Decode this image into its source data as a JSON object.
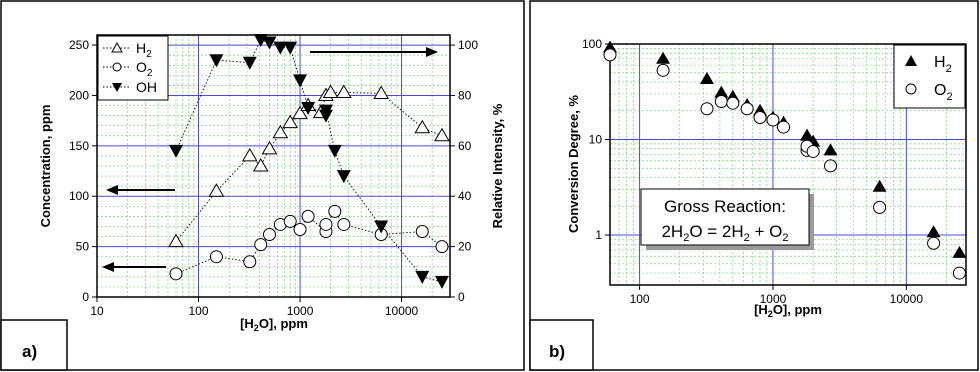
{
  "panels": {
    "a": {
      "label": "a)",
      "xlabel_prefix": "[H",
      "xlabel_sub": "2",
      "xlabel_suffix": "O], ppm",
      "ylabel_left": "Concentration, ppm",
      "ylabel_right": "Relative Intensity, %",
      "x_ticks": [
        "10",
        "100",
        "1000",
        "10000"
      ],
      "y_ticks_left": [
        "0",
        "50",
        "100",
        "150",
        "200",
        "250"
      ],
      "y_ticks_right": [
        "0",
        "20",
        "40",
        "60",
        "80",
        "100"
      ],
      "legend": [
        {
          "main": "H",
          "sub": "2"
        },
        {
          "main": "O",
          "sub": "2"
        },
        {
          "main": "OH",
          "sub": ""
        }
      ]
    },
    "b": {
      "label": "b)",
      "xlabel_prefix": "[H",
      "xlabel_sub": "2",
      "xlabel_suffix": "O], ppm",
      "ylabel": "Conversion Degree, %",
      "x_ticks": [
        "100",
        "1000",
        "10000"
      ],
      "y_ticks": [
        "1",
        "10",
        "100"
      ],
      "legend": [
        {
          "main": "H",
          "sub": "2"
        },
        {
          "main": "O",
          "sub": "2"
        }
      ],
      "annotation_line1": "Gross Reaction:",
      "annotation_line2_parts": [
        "2H",
        "2",
        "O = 2H",
        "2",
        " + O",
        "2"
      ]
    }
  },
  "colors": {
    "grid_major": "#4a4ad6",
    "grid_minor": "#7fd07f",
    "marker": "#000000",
    "frame": "#000000"
  },
  "chart_data": [
    {
      "type": "scatter",
      "panel": "a",
      "x_scale": "log",
      "xlim": [
        10,
        30000
      ],
      "ylim": [
        0,
        260
      ],
      "y2lim": [
        0,
        104
      ],
      "grid": true,
      "legend_position": "top-left",
      "series": [
        {
          "name": "H2",
          "axis": "left",
          "marker": "open-triangle-up",
          "line": "dotted",
          "x": [
            60,
            150,
            320,
            410,
            500,
            640,
            800,
            1000,
            1200,
            1600,
            1800,
            2000,
            2700,
            6300,
            16000,
            25000
          ],
          "y": [
            55,
            105,
            140,
            130,
            147,
            163,
            173,
            182,
            190,
            183,
            200,
            203,
            203,
            202,
            168,
            160
          ]
        },
        {
          "name": "O2",
          "axis": "left",
          "marker": "open-circle",
          "line": "dotted",
          "x": [
            60,
            150,
            320,
            410,
            500,
            640,
            800,
            1000,
            1200,
            1800,
            1800,
            2200,
            2700,
            6300,
            16000,
            25000
          ],
          "y": [
            23,
            40,
            35,
            52,
            62,
            72,
            75,
            67,
            80,
            65,
            72,
            85,
            72,
            62,
            65,
            50
          ]
        },
        {
          "name": "OH",
          "axis": "right",
          "marker": "filled-triangle-down",
          "line": "dotted",
          "x": [
            60,
            150,
            320,
            410,
            500,
            640,
            800,
            1000,
            1200,
            1800,
            1800,
            2200,
            2700,
            6300,
            16000,
            25000
          ],
          "y": [
            58,
            94,
            93,
            102,
            101,
            99,
            99,
            86,
            75,
            72,
            74,
            58,
            48,
            28,
            8,
            6
          ]
        }
      ]
    },
    {
      "type": "scatter",
      "panel": "b",
      "x_scale": "log",
      "y_scale": "log",
      "xlim": [
        60,
        28000
      ],
      "ylim": [
        0.3,
        100
      ],
      "grid": true,
      "legend_position": "top-right",
      "series": [
        {
          "name": "H2",
          "marker": "filled-triangle-up",
          "x": [
            60,
            150,
            320,
            410,
            500,
            640,
            800,
            1000,
            1200,
            1800,
            2000,
            2700,
            6300,
            16000,
            25000
          ],
          "y": [
            92,
            70,
            43,
            31,
            28,
            23,
            20,
            17,
            15,
            11,
            9.5,
            7.7,
            3.2,
            1.07,
            0.65
          ]
        },
        {
          "name": "O2",
          "marker": "open-circle",
          "x": [
            60,
            150,
            320,
            410,
            500,
            640,
            800,
            1000,
            1200,
            1800,
            1800,
            2000,
            2700,
            6300,
            16000,
            25000
          ],
          "y": [
            77,
            53,
            21,
            25,
            24,
            21,
            17,
            16,
            13.5,
            7.7,
            8.5,
            7.5,
            5.3,
            1.95,
            0.82,
            0.4
          ]
        }
      ]
    }
  ]
}
